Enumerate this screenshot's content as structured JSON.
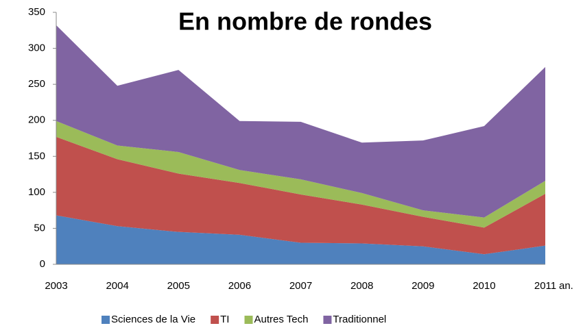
{
  "chart_data": {
    "type": "area",
    "stacked": true,
    "title": "En nombre de rondes",
    "x_label": "an.",
    "categories": [
      "2003",
      "2004",
      "2005",
      "2006",
      "2007",
      "2008",
      "2009",
      "2010",
      "2011"
    ],
    "series": [
      {
        "name": "Sciences de la Vie",
        "color": "#4f81bd",
        "values": [
          68,
          53,
          45,
          41,
          30,
          29,
          25,
          14,
          26
        ]
      },
      {
        "name": "TI",
        "color": "#c0504d",
        "values": [
          109,
          93,
          81,
          72,
          67,
          54,
          41,
          37,
          72
        ]
      },
      {
        "name": "Autres Tech",
        "color": "#9bbb59",
        "values": [
          22,
          19,
          30,
          18,
          21,
          16,
          9,
          14,
          18
        ]
      },
      {
        "name": "Traditionnel",
        "color": "#8064a2",
        "values": [
          133,
          83,
          114,
          68,
          80,
          70,
          97,
          127,
          158
        ]
      }
    ],
    "ylim": [
      0,
      350
    ],
    "yticks": [
      0,
      50,
      100,
      150,
      200,
      250,
      300,
      350
    ],
    "grid": false,
    "legend": "bottom"
  }
}
